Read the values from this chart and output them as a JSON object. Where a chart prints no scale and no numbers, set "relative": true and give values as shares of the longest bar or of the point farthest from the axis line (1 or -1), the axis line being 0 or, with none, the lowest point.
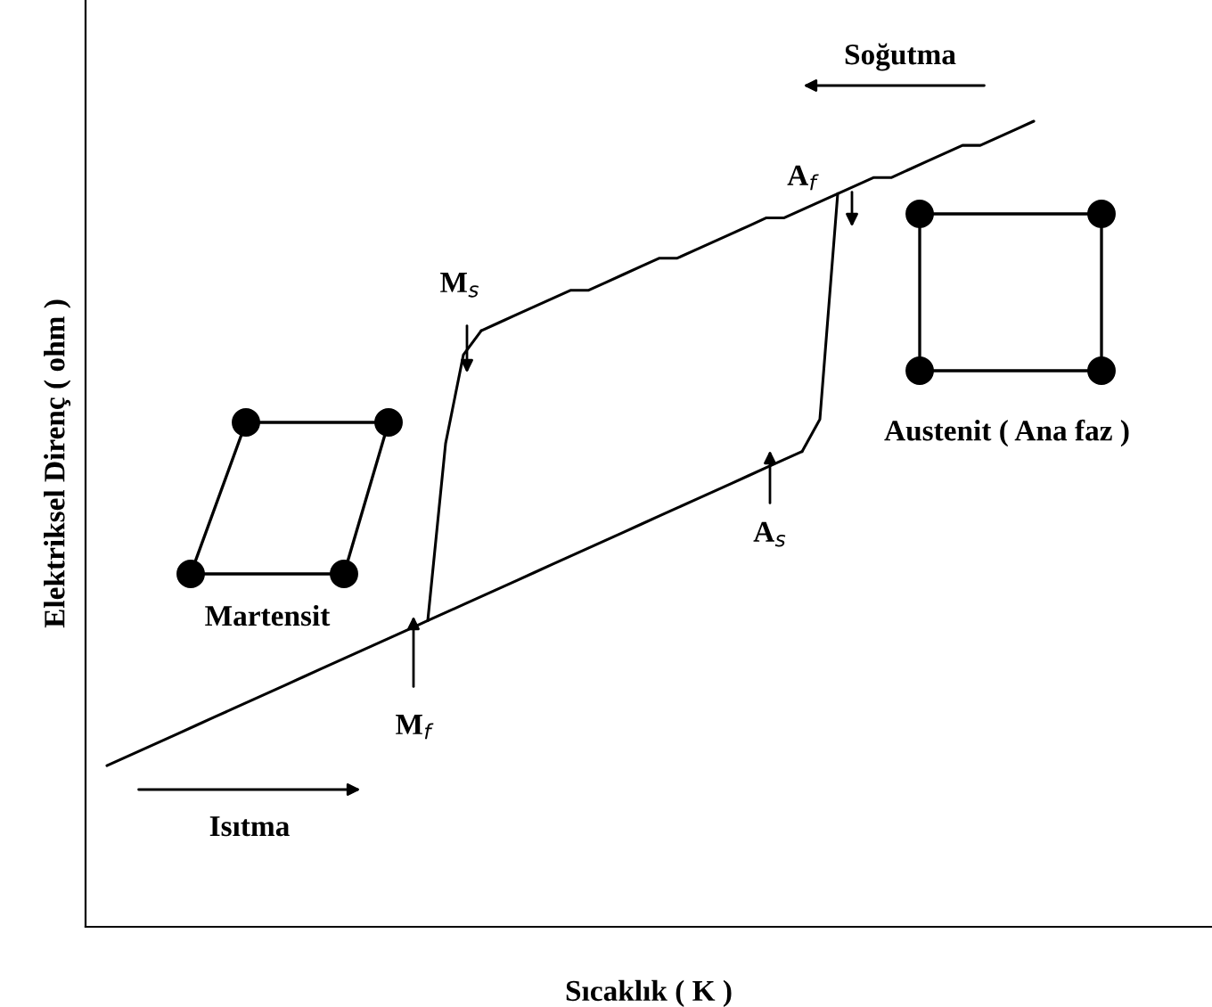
{
  "chart_data": {
    "type": "line",
    "relative": true,
    "xlabel": "Sıcaklık ( K )",
    "ylabel": "Elektriksel Direnç ( ohm )",
    "annotations": [
      "Soğutma",
      "A$_{f}$",
      "M$_{s}$",
      "Austenit ( Ana faz )",
      "A$_{s}$",
      "Martensit",
      "M$_{f}$",
      "Isıtma"
    ],
    "categories": [
      null,
      null,
      null,
      null,
      null,
      null,
      null,
      null,
      null,
      null,
      null,
      null,
      null,
      null,
      null,
      null,
      null,
      null,
      null,
      null,
      null,
      null,
      null,
      null,
      null,
      null,
      null,
      null,
      null,
      null,
      null,
      null,
      null,
      null,
      null,
      null,
      null,
      null,
      null,
      null,
      null,
      null,
      null,
      null,
      null,
      null,
      null,
      null,
      null,
      null,
      null,
      null,
      null,
      null,
      null,
      null,
      null,
      null,
      null,
      null,
      null,
      null,
      null,
      null
    ],
    "series": [
      {
        "color": "#000000",
        "values": [
          null,
          0.2,
          0.21,
          0.22,
          0.23,
          0.24,
          0.25,
          0.26,
          0.27,
          0.28,
          0.29,
          0.3,
          0.31,
          0.32,
          0.33,
          0.34,
          0.35,
          0.36,
          0.37,
          0.38,
          0.39,
          0.4,
          0.41,
          0.42,
          0.43,
          0.44,
          0.45,
          0.46,
          0.47,
          0.48,
          0.49,
          0.5,
          0.51,
          0.52,
          0.53,
          0.54,
          0.55,
          0.56,
          0.57,
          0.58,
          0.59,
          null,
          null,
          null,
          null,
          null,
          null,
          null,
          null,
          null,
          null,
          null,
          null,
          null,
          null,
          null,
          null,
          null,
          null,
          null,
          null,
          null,
          null,
          null
        ]
      },
      {
        "color": "#000000",
        "values": [
          null,
          null,
          null,
          null,
          null,
          null,
          null,
          null,
          null,
          null,
          null,
          null,
          null,
          null,
          null,
          null,
          null,
          null,
          null,
          null,
          null,
          null,
          0.74,
          0.75,
          0.76,
          0.77,
          0.78,
          0.79,
          0.79,
          0.8,
          0.81,
          0.82,
          0.83,
          0.83,
          0.84,
          0.85,
          0.86,
          0.87,
          0.88,
          0.88,
          0.89,
          0.9,
          0.91,
          0.92,
          0.93,
          0.93,
          0.94,
          0.95,
          0.96,
          0.97,
          0.97,
          0.98,
          0.99,
          1.0,
          null,
          null,
          null,
          null,
          null,
          null,
          null,
          null,
          null,
          null
        ]
      },
      {
        "color": "#000000",
        "values": [
          null,
          null,
          null,
          null,
          null,
          null,
          null,
          null,
          null,
          null,
          null,
          null,
          null,
          null,
          null,
          null,
          null,
          null,
          null,
          null,
          null,
          null,
          null,
          null,
          null,
          null,
          null,
          null,
          null,
          null,
          null,
          null,
          null,
          null,
          null,
          null,
          null,
          null,
          null,
          null,
          0.59,
          0.63,
          0.91,
          null,
          null,
          null,
          null,
          null,
          null,
          null,
          null,
          null,
          null,
          null,
          null,
          null,
          null,
          null,
          null,
          null,
          null,
          null,
          null,
          null
        ]
      },
      {
        "color": "#000000",
        "values": [
          null,
          null,
          null,
          null,
          null,
          null,
          null,
          null,
          null,
          null,
          null,
          null,
          null,
          null,
          null,
          null,
          null,
          null,
          null,
          0.38,
          0.6,
          0.71,
          0.74,
          null,
          null,
          null,
          null,
          null,
          null,
          null,
          null,
          null,
          null,
          null,
          null,
          null,
          null,
          null,
          null,
          null,
          null,
          null,
          null,
          null,
          null,
          null,
          null,
          null,
          null,
          null,
          null,
          null,
          null,
          null,
          null,
          null,
          null,
          null,
          null,
          null,
          null,
          null,
          null,
          null
        ]
      }
    ]
  }
}
